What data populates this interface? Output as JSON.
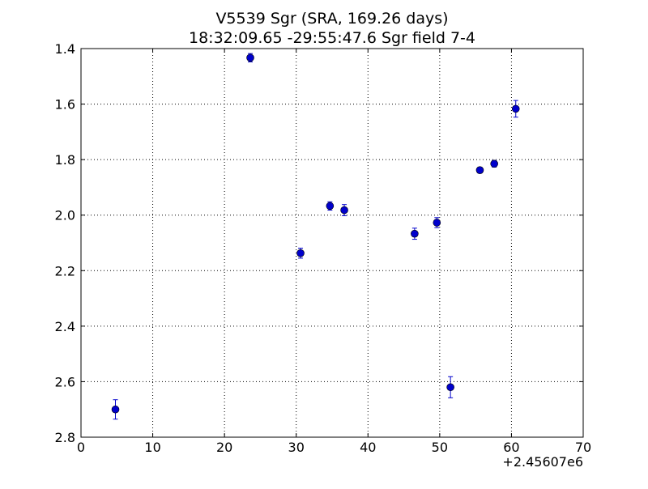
{
  "chart_data": {
    "type": "scatter",
    "title": "V5539 Sgr  (SRA, 169.26 days)",
    "subtitle": "18:32:09.65 -29:55:47.6 Sgr field 7-4",
    "xlabel": "",
    "ylabel": "",
    "x_offset_label": "+2.45607e6",
    "xlim": [
      0,
      70
    ],
    "ylim": [
      2.8,
      1.4
    ],
    "y_inverted": true,
    "grid": true,
    "grid_style": "dotted",
    "x_ticks": [
      0,
      10,
      20,
      30,
      40,
      50,
      60,
      70
    ],
    "x_tick_labels": [
      "0",
      "10",
      "20",
      "30",
      "40",
      "50",
      "60",
      "70"
    ],
    "y_ticks": [
      1.4,
      1.6,
      1.8,
      2.0,
      2.2,
      2.4,
      2.6,
      2.8
    ],
    "y_tick_labels": [
      "1.4",
      "1.6",
      "1.8",
      "2.0",
      "2.2",
      "2.4",
      "2.6",
      "2.8"
    ],
    "marker_color": "#0000cc",
    "series": [
      {
        "points": [
          {
            "x": 4.8,
            "y": 2.7,
            "err": 0.035
          },
          {
            "x": 23.6,
            "y": 1.433,
            "err": 0.015
          },
          {
            "x": 30.6,
            "y": 2.137,
            "err": 0.018
          },
          {
            "x": 34.7,
            "y": 1.967,
            "err": 0.015
          },
          {
            "x": 36.7,
            "y": 1.982,
            "err": 0.02
          },
          {
            "x": 46.5,
            "y": 2.067,
            "err": 0.02
          },
          {
            "x": 49.6,
            "y": 2.027,
            "err": 0.018
          },
          {
            "x": 51.5,
            "y": 2.62,
            "err": 0.038
          },
          {
            "x": 55.6,
            "y": 1.838,
            "err": 0.01
          },
          {
            "x": 57.6,
            "y": 1.815,
            "err": 0.012
          },
          {
            "x": 60.6,
            "y": 1.617,
            "err": 0.03
          }
        ]
      }
    ]
  }
}
